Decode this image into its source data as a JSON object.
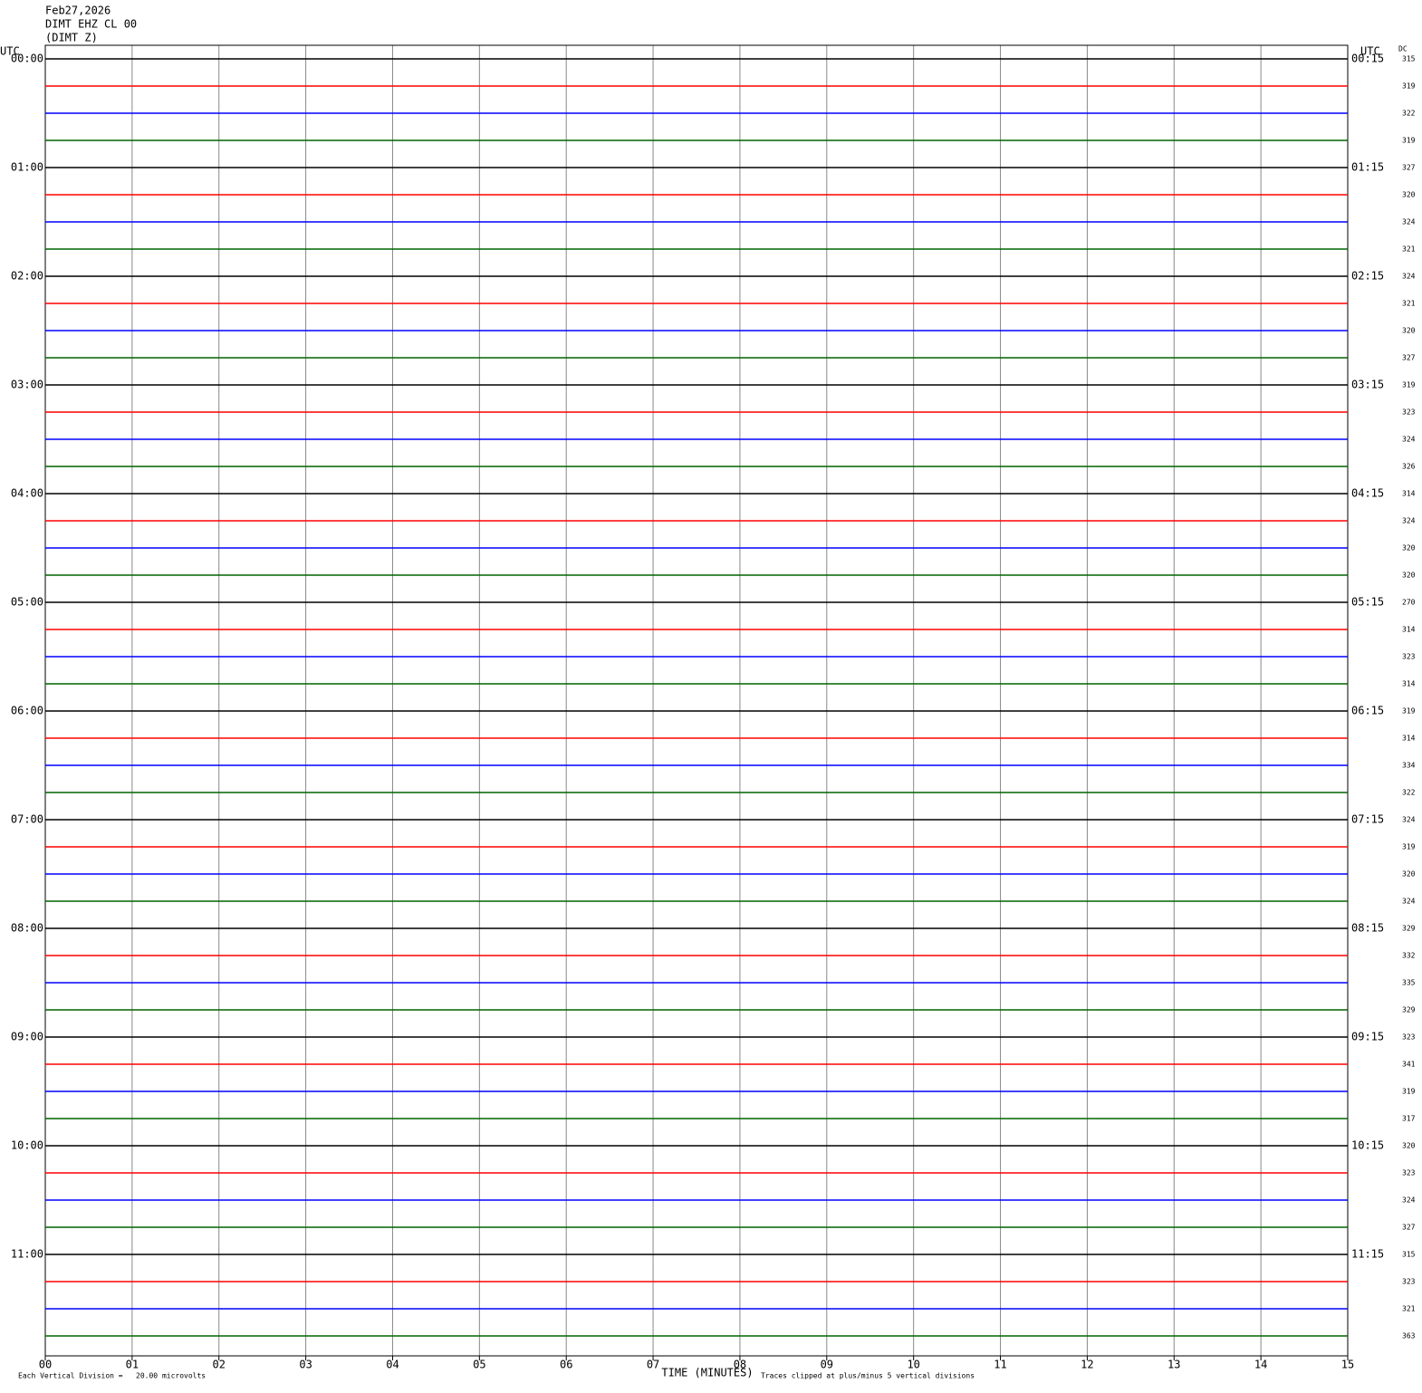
{
  "chart_data": {
    "type": "helicorder",
    "header": [
      "Feb27,2026",
      "DIMT EHZ CL 00",
      "(DIMT Z)"
    ],
    "left_axis_title": "UTC",
    "right_axis_title": "UTC",
    "dc_title": "DC",
    "row_labels_left": [
      "00:00",
      "01:00",
      "02:00",
      "03:00",
      "04:00",
      "05:00",
      "06:00",
      "07:00",
      "08:00",
      "09:00",
      "10:00",
      "11:00"
    ],
    "row_labels_right": [
      "00:15",
      "01:15",
      "02:15",
      "03:15",
      "04:15",
      "05:15",
      "06:15",
      "07:15",
      "08:15",
      "09:15",
      "10:15",
      "11:15"
    ],
    "dc_values": [
      315,
      319,
      322,
      319,
      327,
      320,
      324,
      321,
      324,
      321,
      320,
      327,
      319,
      323,
      324,
      326,
      314,
      324,
      320,
      320,
      270,
      314,
      323,
      314,
      319,
      314,
      334,
      322,
      324,
      319,
      320,
      324,
      329,
      332,
      335,
      329,
      323,
      341,
      319,
      317,
      320,
      323,
      324,
      327,
      315,
      323,
      321,
      363
    ],
    "trace_colors": [
      "#000000",
      "#ff0000",
      "#0000ff",
      "#006400"
    ],
    "xlim": [
      0,
      15
    ],
    "xticks": [
      {
        "value": 0,
        "label": "00"
      },
      {
        "value": 1,
        "label": "01"
      },
      {
        "value": 2,
        "label": "02"
      },
      {
        "value": 3,
        "label": "03"
      },
      {
        "value": 4,
        "label": "04"
      },
      {
        "value": 5,
        "label": "05"
      },
      {
        "value": 6,
        "label": "06"
      },
      {
        "value": 7,
        "label": "07"
      },
      {
        "value": 8,
        "label": "08"
      },
      {
        "value": 9,
        "label": "09"
      },
      {
        "value": 10,
        "label": "10"
      },
      {
        "value": 11,
        "label": "11"
      },
      {
        "value": 12,
        "label": "12"
      },
      {
        "value": 13,
        "label": "13"
      },
      {
        "value": 14,
        "label": "14"
      },
      {
        "value": 15,
        "label": "15"
      }
    ],
    "xlabel": "TIME (MINUTES)",
    "footer_left": "Each Vertical Division =   20.00 microvolts",
    "footer_right": "Traces clipped at plus/minus 5 vertical divisions"
  }
}
